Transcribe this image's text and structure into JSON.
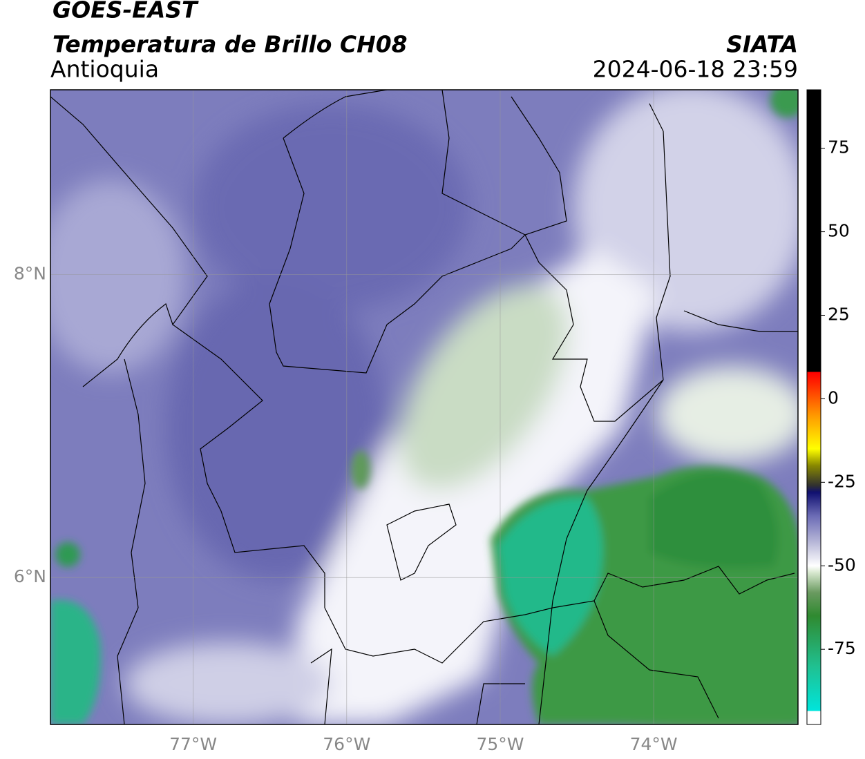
{
  "chart_data": {
    "type": "map",
    "title": "GOES-EAST",
    "subtitle": "Temperatura de Brillo CH08",
    "region": "Antioquia",
    "source": "SIATA",
    "timestamp": "2024-06-18 23:59",
    "xlim": [
      -77.93,
      -73.06
    ],
    "ylim": [
      5.03,
      9.22
    ],
    "xticks": [
      {
        "value": -77,
        "label": "77°W"
      },
      {
        "value": -76,
        "label": "76°W"
      },
      {
        "value": -75,
        "label": "75°W"
      },
      {
        "value": -74,
        "label": "74°W"
      }
    ],
    "yticks": [
      {
        "value": 6,
        "label": "6°N"
      },
      {
        "value": 8,
        "label": "8°N"
      }
    ],
    "grid": true,
    "colorbar": {
      "clim": [
        -97.5,
        92.5
      ],
      "ticks": [
        75,
        50,
        25,
        0,
        -25,
        -50,
        -75
      ],
      "stops": [
        {
          "value": -97.5,
          "color": "#ffffff"
        },
        {
          "value": -93.5,
          "color": "#ffffff"
        },
        {
          "value": -93.5,
          "color": "#00e5dc"
        },
        {
          "value": -80,
          "color": "#20c090"
        },
        {
          "value": -65,
          "color": "#2f8a30"
        },
        {
          "value": -58,
          "color": "#6a9a60"
        },
        {
          "value": -52,
          "color": "#d8e8d0"
        },
        {
          "value": -50,
          "color": "#ffffff"
        },
        {
          "value": -43,
          "color": "#b8b8d8"
        },
        {
          "value": -35,
          "color": "#6b6bb5"
        },
        {
          "value": -28,
          "color": "#101070"
        },
        {
          "value": -26,
          "color": "#303030"
        },
        {
          "value": -20,
          "color": "#888800"
        },
        {
          "value": -15,
          "color": "#ffff00"
        },
        {
          "value": -5,
          "color": "#ff9900"
        },
        {
          "value": 5,
          "color": "#ff2000"
        },
        {
          "value": 8,
          "color": "#ff0000"
        },
        {
          "value": 8,
          "color": "#000000"
        },
        {
          "value": 92.5,
          "color": "#000000"
        }
      ]
    }
  }
}
